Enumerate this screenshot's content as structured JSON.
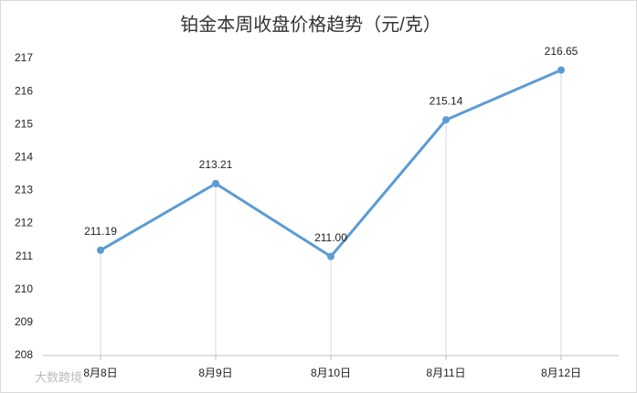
{
  "chart_data": {
    "type": "line",
    "title": "铂金本周收盘价格趋势（元/克）",
    "categories": [
      "8月8日",
      "8月9日",
      "8月10日",
      "8月11日",
      "8月12日"
    ],
    "values": [
      211.19,
      213.21,
      211.0,
      215.14,
      216.65
    ],
    "value_labels": [
      "211.19",
      "213.21",
      "211.00",
      "215.14",
      "216.65"
    ],
    "color": "#5b9bd5",
    "ylim": [
      208,
      217
    ],
    "yticks": [
      208,
      209,
      210,
      211,
      212,
      213,
      214,
      215,
      216,
      217
    ],
    "grid": false,
    "drop_lines": true
  },
  "watermark": "大数跨境"
}
